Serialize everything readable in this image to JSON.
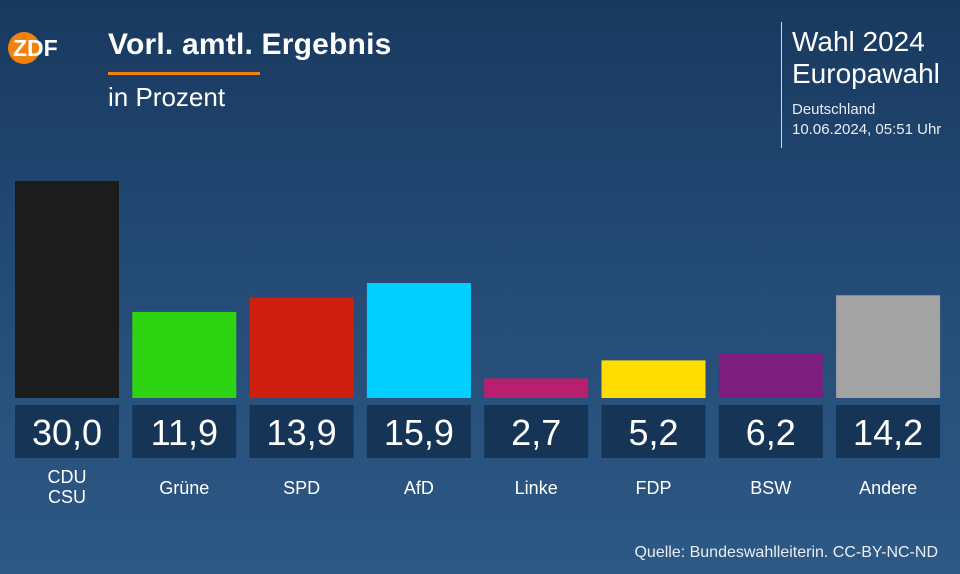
{
  "header": {
    "logo_text": "ZDF",
    "title": "Vorl. amtl. Ergebnis",
    "subtitle": "in Prozent"
  },
  "event": {
    "line1": "Wahl 2024",
    "line2": "Europawahl",
    "region": "Deutschland",
    "timestamp": "10.06.2024, 05:51 Uhr"
  },
  "footer": {
    "source": "Quelle: Bundeswahlleiterin. CC-BY-NC-ND"
  },
  "chart_data": {
    "type": "bar",
    "title": "Vorl. amtl. Ergebnis",
    "subtitle": "in Prozent",
    "categories": [
      [
        "CDU",
        "CSU"
      ],
      [
        "Grüne"
      ],
      [
        "SPD"
      ],
      [
        "AfD"
      ],
      [
        "Linke"
      ],
      [
        "FDP"
      ],
      [
        "BSW"
      ],
      [
        "Andere"
      ]
    ],
    "values": [
      30.0,
      11.9,
      13.9,
      15.9,
      2.7,
      5.2,
      6.2,
      14.2
    ],
    "value_labels": [
      "30,0",
      "11,9",
      "13,9",
      "15,9",
      "2,7",
      "5,2",
      "6,2",
      "14,2"
    ],
    "colors": [
      "#1c1c1c",
      "#2ed312",
      "#d01f0e",
      "#00cfff",
      "#b7206e",
      "#ffdd00",
      "#7c1e7e",
      "#a3a3a3"
    ],
    "ylim": [
      0,
      30
    ],
    "grid": false,
    "legend": "none"
  }
}
